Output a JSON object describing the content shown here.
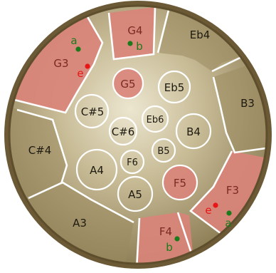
{
  "diagram": {
    "colors": {
      "rim": "#6c5a36",
      "metal": "#b4a67e",
      "metal_light": "#e9e2cb",
      "outer_zone": "#9a8a60",
      "highlight": "#d9847a",
      "divider": "#ffffff",
      "label_dark": "#1e1a10",
      "label_highlight": "#7a2a22",
      "marker_green": "#1b7a1b",
      "marker_red": "#e81616"
    },
    "outer_notes": [
      {
        "id": "g4",
        "label": "G4",
        "highlight": true
      },
      {
        "id": "eb4",
        "label": "Eb4",
        "highlight": false
      },
      {
        "id": "b3",
        "label": "B3",
        "highlight": false
      },
      {
        "id": "f3",
        "label": "F3",
        "highlight": true
      },
      {
        "id": "f4",
        "label": "F4",
        "highlight": true
      },
      {
        "id": "a3",
        "label": "A3",
        "highlight": false
      },
      {
        "id": "cs4",
        "label": "C#4",
        "highlight": false
      },
      {
        "id": "g3",
        "label": "G3",
        "highlight": true
      }
    ],
    "inner_notes": [
      {
        "id": "g5",
        "label": "G5",
        "highlight": true
      },
      {
        "id": "eb5",
        "label": "Eb5",
        "highlight": false
      },
      {
        "id": "cs5",
        "label": "C#5",
        "highlight": false
      },
      {
        "id": "eb6",
        "label": "Eb6",
        "highlight": false
      },
      {
        "id": "cs6",
        "label": "C#6",
        "highlight": false
      },
      {
        "id": "b4",
        "label": "B4",
        "highlight": false
      },
      {
        "id": "b5",
        "label": "B5",
        "highlight": false
      },
      {
        "id": "f6",
        "label": "F6",
        "highlight": false
      },
      {
        "id": "a4",
        "label": "A4",
        "highlight": false
      },
      {
        "id": "f5",
        "label": "F5",
        "highlight": true
      },
      {
        "id": "a5",
        "label": "A5",
        "highlight": false
      }
    ],
    "markers": [
      {
        "id": "g4-b",
        "letter": "b",
        "color": "green"
      },
      {
        "id": "g3-a",
        "letter": "a",
        "color": "green"
      },
      {
        "id": "g3-e",
        "letter": "e",
        "color": "red"
      },
      {
        "id": "f3-e",
        "letter": "e",
        "color": "red"
      },
      {
        "id": "f3-a",
        "letter": "a",
        "color": "green"
      },
      {
        "id": "f4-b",
        "letter": "b",
        "color": "green"
      }
    ]
  }
}
